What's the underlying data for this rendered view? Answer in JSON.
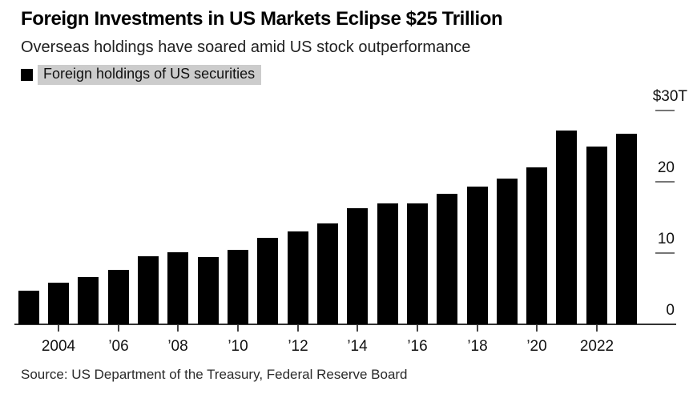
{
  "header": {
    "title": "Foreign Investments in US Markets Eclipse $25 Trillion",
    "subtitle": "Overseas holdings have soared amid US stock outperformance"
  },
  "legend": {
    "label": "Foreign holdings of US securities",
    "swatch_color": "#000000",
    "highlight_color": "#cccccc"
  },
  "source": "Source: US Department of the Treasury, Federal Reserve Board",
  "chart_data": {
    "type": "bar",
    "title": "Foreign Investments in US Markets Eclipse $25 Trillion",
    "series_name": "Foreign holdings of US securities",
    "unit": "USD trillions",
    "x": [
      2003,
      2004,
      2005,
      2006,
      2007,
      2008,
      2009,
      2010,
      2011,
      2012,
      2013,
      2014,
      2015,
      2016,
      2017,
      2018,
      2019,
      2020,
      2021,
      2022,
      2023
    ],
    "values": [
      4.7,
      5.8,
      6.6,
      7.6,
      9.6,
      10.1,
      9.5,
      10.5,
      12.2,
      13.1,
      14.2,
      16.3,
      17.0,
      17.0,
      18.3,
      19.3,
      20.5,
      22.0,
      27.2,
      25.0,
      26.8
    ],
    "x_ticks": [
      {
        "year": 2004,
        "label": "2004"
      },
      {
        "year": 2006,
        "label": "’06"
      },
      {
        "year": 2008,
        "label": "’08"
      },
      {
        "year": 2010,
        "label": "’10"
      },
      {
        "year": 2012,
        "label": "’12"
      },
      {
        "year": 2014,
        "label": "’14"
      },
      {
        "year": 2016,
        "label": "’16"
      },
      {
        "year": 2018,
        "label": "’18"
      },
      {
        "year": 2020,
        "label": "’20"
      },
      {
        "year": 2022,
        "label": "2022"
      }
    ],
    "y_ticks": [
      {
        "value": 30,
        "label": "$30T"
      },
      {
        "value": 20,
        "label": "20"
      },
      {
        "value": 10,
        "label": "10"
      },
      {
        "value": 0,
        "label": "0"
      }
    ],
    "ylim": [
      0,
      30
    ],
    "bar_color": "#000000",
    "axis_color": "#333333",
    "grid": "off",
    "legend_position": "top-left",
    "y_axis_side": "right"
  }
}
